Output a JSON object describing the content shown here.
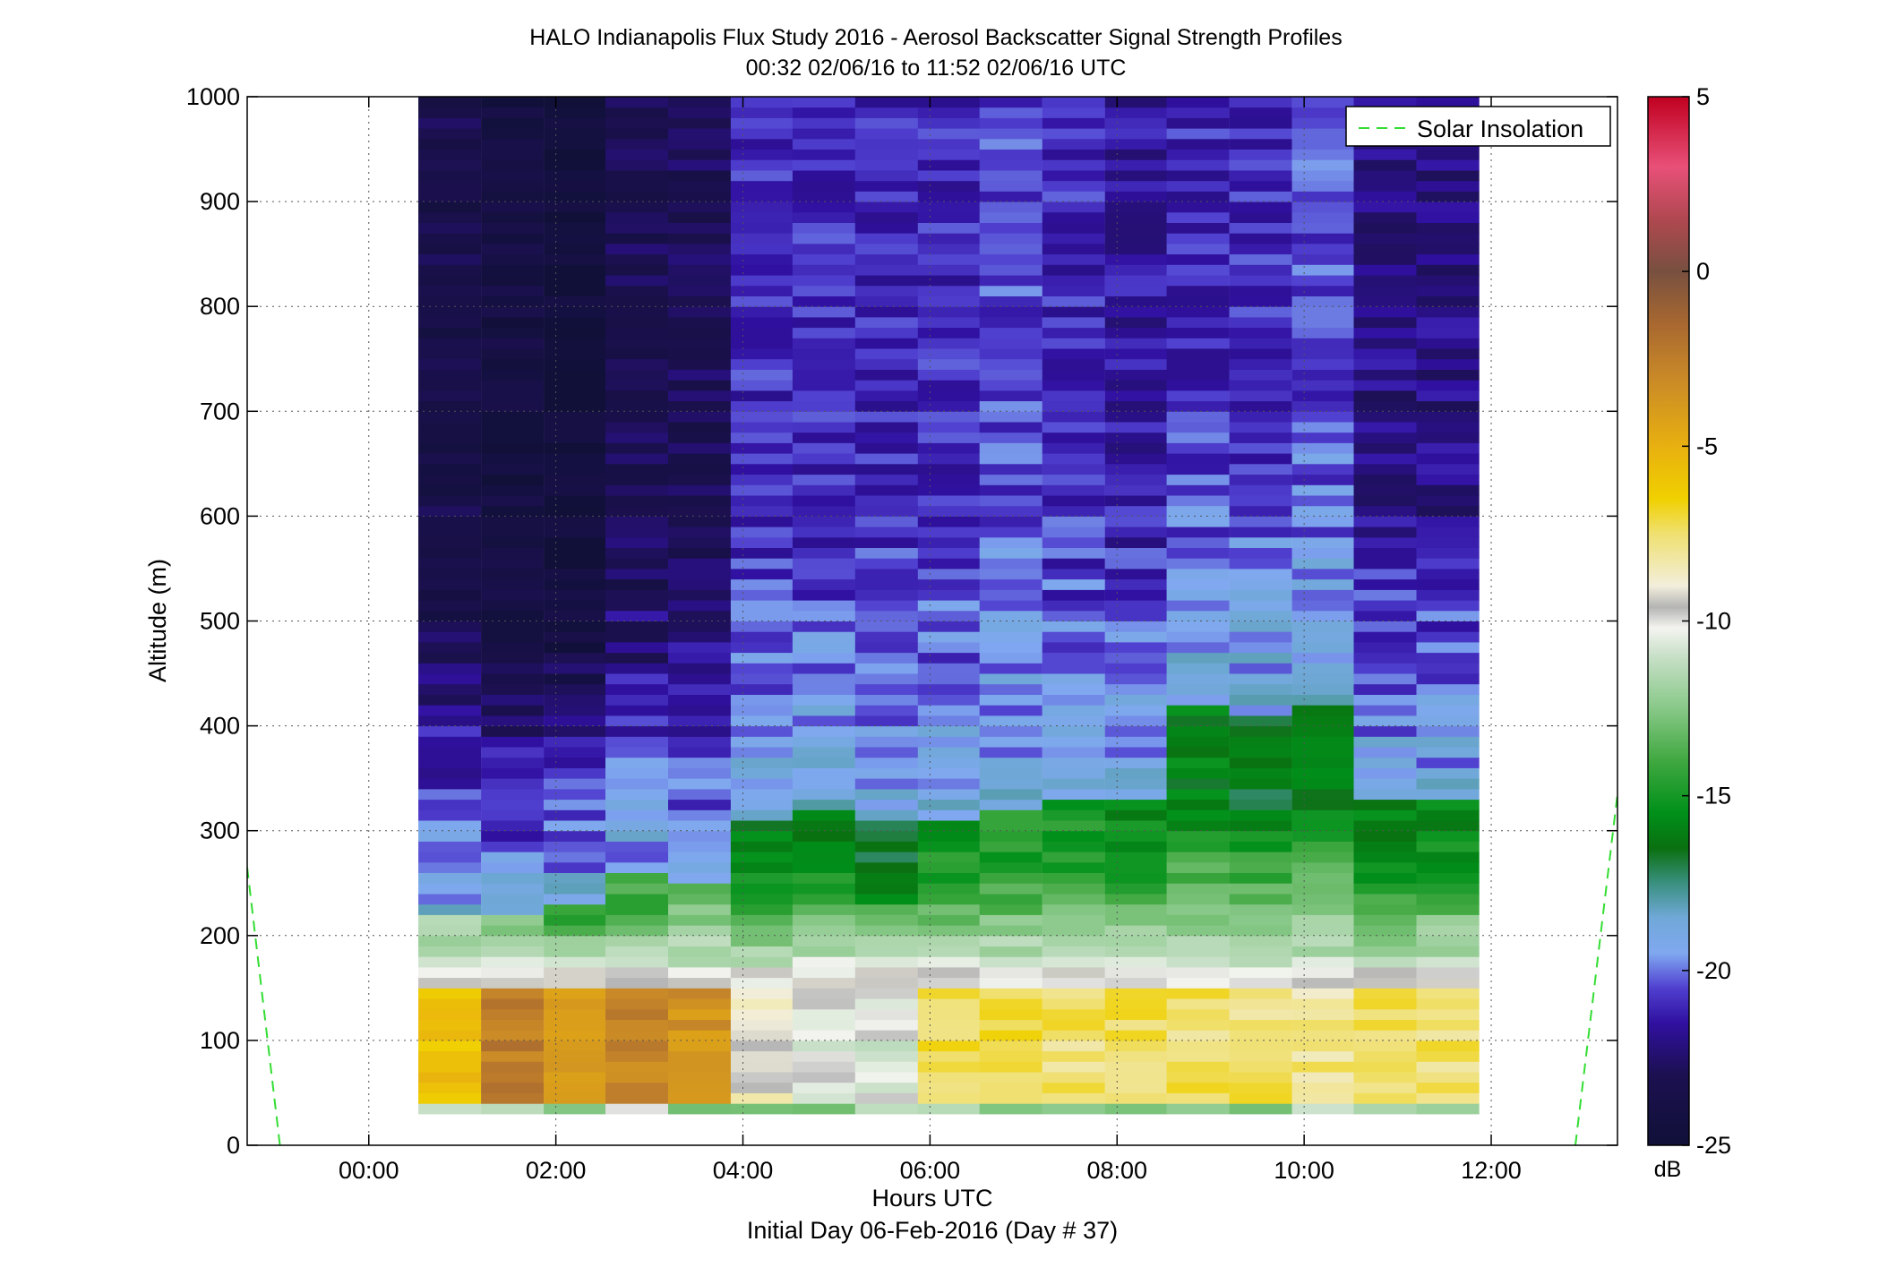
{
  "chart_data": {
    "type": "heatmap",
    "title": "HALO Indianapolis Flux Study 2016 - Aerosol Backscatter Signal Strength Profiles",
    "subtitle": "00:32 02/06/16 to 11:52 02/06/16  UTC",
    "xlabel": "Hours UTC",
    "xlabel2": "Initial Day 06-Feb-2016 (Day # 37)",
    "ylabel": "Altitude (m)",
    "xlim": [
      -1.3,
      13.35
    ],
    "ylim": [
      0,
      1000
    ],
    "x_ticks": [
      {
        "value": 0,
        "label": "00:00"
      },
      {
        "value": 2,
        "label": "02:00"
      },
      {
        "value": 4,
        "label": "04:00"
      },
      {
        "value": 6,
        "label": "06:00"
      },
      {
        "value": 8,
        "label": "08:00"
      },
      {
        "value": 10,
        "label": "10:00"
      },
      {
        "value": 12,
        "label": "12:00"
      }
    ],
    "y_ticks": [
      0,
      100,
      200,
      300,
      400,
      500,
      600,
      700,
      800,
      900,
      1000
    ],
    "grid": true,
    "legend": {
      "location": "top-right",
      "entries": [
        {
          "label": "Solar Insolation",
          "color": "#33dd33",
          "style": "dashed"
        }
      ]
    },
    "colorbar": {
      "min": -25,
      "max": 5,
      "ticks": [
        5,
        0,
        -5,
        -10,
        -15,
        -20,
        -25
      ],
      "unit": "dB"
    },
    "time_columns": [
      0.53,
      1.2,
      1.87,
      2.53,
      3.2,
      3.87,
      4.53,
      5.2,
      5.87,
      6.53,
      7.2,
      7.87,
      8.53,
      9.2,
      9.87,
      10.53,
      11.2
    ],
    "column_width_hours": 0.667,
    "profiles": [
      {
        "time": 0.53,
        "top_dB": -23.5,
        "layer_top_m": 220,
        "layer_dB": -12,
        "surface_dB": -6
      },
      {
        "time": 1.2,
        "top_dB": -24,
        "layer_top_m": 215,
        "layer_dB": -12,
        "surface_dB": -2.5
      },
      {
        "time": 1.87,
        "top_dB": -24.5,
        "layer_top_m": 230,
        "layer_dB": -14,
        "surface_dB": -4
      },
      {
        "time": 2.53,
        "top_dB": -23,
        "layer_top_m": 255,
        "layer_dB": -14,
        "surface_dB": -3
      },
      {
        "time": 3.2,
        "top_dB": -23,
        "layer_top_m": 245,
        "layer_dB": -13,
        "surface_dB": -3.5
      },
      {
        "time": 3.87,
        "top_dB": -21,
        "layer_top_m": 310,
        "layer_dB": -16,
        "surface_dB": -9
      },
      {
        "time": 4.53,
        "top_dB": -21,
        "layer_top_m": 320,
        "layer_dB": -16,
        "surface_dB": -10.5
      },
      {
        "time": 5.2,
        "top_dB": -21,
        "layer_top_m": 310,
        "layer_dB": -16.5,
        "surface_dB": -10.5
      },
      {
        "time": 5.87,
        "top_dB": -21,
        "layer_top_m": 310,
        "layer_dB": -15,
        "surface_dB": -7
      },
      {
        "time": 6.53,
        "top_dB": -20.5,
        "layer_top_m": 320,
        "layer_dB": -15,
        "surface_dB": -7
      },
      {
        "time": 7.2,
        "top_dB": -21,
        "layer_top_m": 330,
        "layer_dB": -15,
        "surface_dB": -7.5
      },
      {
        "time": 7.87,
        "top_dB": -21.5,
        "layer_top_m": 330,
        "layer_dB": -15.5,
        "surface_dB": -7.5
      },
      {
        "time": 8.53,
        "top_dB": -21,
        "layer_top_m": 420,
        "layer_dB": -16,
        "surface_dB": -7.5
      },
      {
        "time": 9.2,
        "top_dB": -21,
        "layer_top_m": 410,
        "layer_dB": -16.5,
        "surface_dB": -7.5
      },
      {
        "time": 9.87,
        "top_dB": -20.5,
        "layer_top_m": 420,
        "layer_dB": -16,
        "surface_dB": -8
      },
      {
        "time": 10.53,
        "top_dB": -22,
        "layer_top_m": 330,
        "layer_dB": -16,
        "surface_dB": -7.5
      },
      {
        "time": 11.2,
        "top_dB": -22,
        "layer_top_m": 330,
        "layer_dB": -15.5,
        "surface_dB": -7.5
      }
    ],
    "solar_insolation": [
      {
        "x": -1.3,
        "y": 265
      },
      {
        "x": -0.95,
        "y": 0
      },
      {
        "x": 12.9,
        "y": 0
      },
      {
        "x": 13.35,
        "y": 335
      }
    ]
  }
}
